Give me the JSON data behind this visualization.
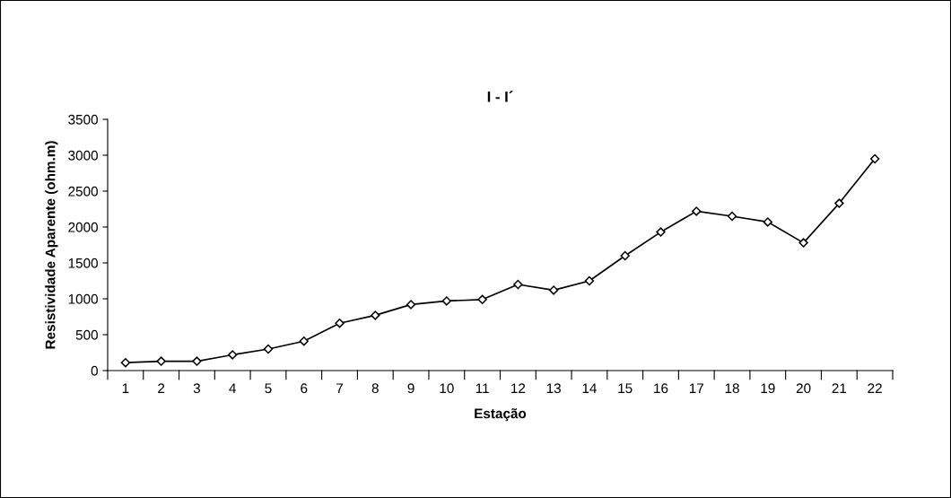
{
  "chart_data": {
    "type": "line",
    "title": "I - I´",
    "xlabel": "Estação",
    "ylabel": "Resistividade Aparente (ohm.m)",
    "categories": [
      "1",
      "2",
      "3",
      "4",
      "5",
      "6",
      "7",
      "8",
      "9",
      "10",
      "11",
      "12",
      "13",
      "14",
      "15",
      "16",
      "17",
      "18",
      "19",
      "20",
      "21",
      "22"
    ],
    "series": [
      {
        "color": "#000000",
        "values": [
          110,
          130,
          130,
          220,
          300,
          410,
          660,
          770,
          920,
          970,
          990,
          1200,
          1120,
          1250,
          1600,
          1930,
          2220,
          2150,
          2070,
          1780,
          2330,
          2950
        ]
      }
    ],
    "ylim": [
      0,
      3500
    ],
    "yticks": [
      0,
      500,
      1000,
      1500,
      2000,
      2500,
      3000,
      3500
    ],
    "grid": false,
    "marker": "diamond",
    "line_style": "solid"
  }
}
